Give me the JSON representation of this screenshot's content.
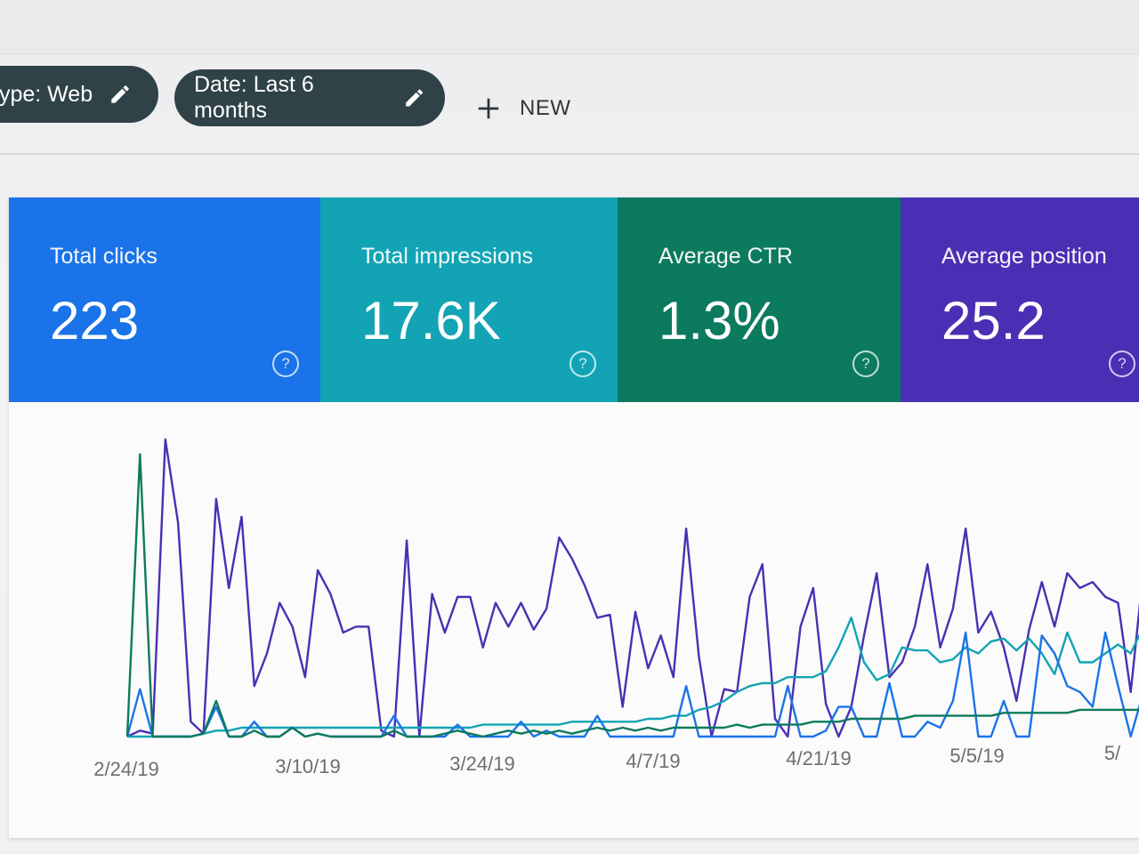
{
  "filters": {
    "type_chip": "type: Web",
    "date_chip": "Date: Last 6 months",
    "new_label": "NEW"
  },
  "cards": [
    {
      "label": "Total clicks",
      "value": "223",
      "color": "#1a73e8"
    },
    {
      "label": "Total impressions",
      "value": "17.6K",
      "color": "#12a4b4"
    },
    {
      "label": "Average CTR",
      "value": "1.3%",
      "color": "#0c7a5e"
    },
    {
      "label": "Average position",
      "value": "25.2",
      "color": "#4a2fb4"
    }
  ],
  "chart_data": {
    "type": "line",
    "x_ticks": [
      "2/24/19",
      "3/10/19",
      "3/24/19",
      "4/7/19",
      "4/21/19",
      "5/5/19",
      "5/"
    ],
    "grid": false,
    "series": [
      {
        "color": "#4a2fb4",
        "values": [
          0,
          2,
          1,
          100,
          72,
          5,
          1,
          80,
          50,
          74,
          17,
          28,
          45,
          37,
          20,
          56,
          48,
          35,
          37,
          37,
          2,
          0,
          66,
          0,
          48,
          35,
          47,
          47,
          30,
          45,
          37,
          45,
          36,
          43,
          67,
          60,
          51,
          40,
          41,
          10,
          42,
          23,
          34,
          20,
          70,
          27,
          0,
          16,
          15,
          47,
          58,
          6,
          0,
          37,
          50,
          11,
          0,
          10,
          34,
          55,
          20,
          25,
          37,
          58,
          30,
          43,
          70,
          35,
          42,
          30,
          12,
          36,
          52,
          37,
          55,
          50,
          52,
          47,
          45,
          15,
          56
        ]
      },
      {
        "color": "#12a4b4",
        "values": [
          0,
          0,
          0,
          0,
          0,
          0,
          1,
          2,
          2,
          3,
          3,
          3,
          3,
          3,
          3,
          3,
          3,
          3,
          3,
          3,
          3,
          3,
          3,
          3,
          3,
          3,
          3,
          3,
          4,
          4,
          4,
          4,
          4,
          4,
          4,
          5,
          5,
          5,
          5,
          5,
          5,
          6,
          6,
          7,
          7,
          9,
          10,
          12,
          15,
          17,
          18,
          18,
          20,
          20,
          20,
          22,
          30,
          40,
          25,
          19,
          21,
          30,
          29,
          29,
          25,
          26,
          30,
          28,
          32,
          33,
          29,
          33,
          28,
          21,
          35,
          25,
          25,
          28,
          31,
          28,
          37
        ]
      },
      {
        "color": "#1a73e8",
        "values": [
          0,
          16,
          0,
          0,
          0,
          0,
          1,
          10,
          0,
          0,
          5,
          0,
          0,
          3,
          0,
          1,
          0,
          0,
          0,
          0,
          0,
          7,
          0,
          0,
          0,
          0,
          4,
          0,
          0,
          0,
          0,
          5,
          0,
          2,
          0,
          0,
          0,
          7,
          0,
          0,
          0,
          0,
          0,
          0,
          17,
          0,
          0,
          0,
          0,
          0,
          0,
          0,
          17,
          0,
          0,
          2,
          10,
          10,
          0,
          0,
          18,
          0,
          0,
          5,
          3,
          12,
          35,
          0,
          0,
          12,
          0,
          0,
          34,
          28,
          17,
          15,
          10,
          35,
          17,
          0,
          15
        ]
      },
      {
        "color": "#0c7a5e",
        "values": [
          0,
          95,
          0,
          0,
          0,
          0,
          1,
          12,
          0,
          0,
          2,
          0,
          0,
          3,
          0,
          1,
          0,
          0,
          0,
          0,
          0,
          2,
          0,
          0,
          0,
          1,
          2,
          1,
          0,
          1,
          2,
          1,
          2,
          1,
          2,
          1,
          2,
          3,
          2,
          3,
          2,
          3,
          2,
          3,
          3,
          3,
          3,
          3,
          4,
          3,
          4,
          4,
          4,
          4,
          5,
          5,
          5,
          6,
          6,
          6,
          6,
          6,
          7,
          7,
          7,
          7,
          7,
          7,
          7,
          8,
          8,
          8,
          8,
          8,
          8,
          9,
          9,
          9,
          9,
          9,
          9
        ]
      }
    ],
    "ylim": [
      0,
      100
    ]
  }
}
